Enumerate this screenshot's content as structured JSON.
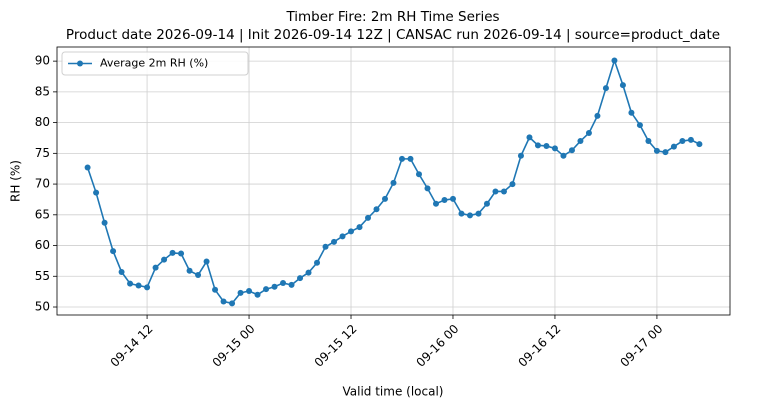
{
  "chart_data": {
    "type": "line",
    "title": "Timber Fire: 2m RH Time Series",
    "subtitle": "Product date 2026-09-14 | Init 2026-09-14 12Z | CANSAC run 2026-09-14 | source=product_date",
    "x_label": "Valid time (local)",
    "y_label": "RH (%)",
    "x": [
      "09-14 05",
      "09-14 06",
      "09-14 07",
      "09-14 08",
      "09-14 09",
      "09-14 10",
      "09-14 11",
      "09-14 12",
      "09-14 13",
      "09-14 14",
      "09-14 15",
      "09-14 16",
      "09-14 17",
      "09-14 18",
      "09-14 19",
      "09-14 20",
      "09-14 21",
      "09-14 22",
      "09-14 23",
      "09-15 00",
      "09-15 01",
      "09-15 02",
      "09-15 03",
      "09-15 04",
      "09-15 05",
      "09-15 06",
      "09-15 07",
      "09-15 08",
      "09-15 09",
      "09-15 10",
      "09-15 11",
      "09-15 12",
      "09-15 13",
      "09-15 14",
      "09-15 15",
      "09-15 16",
      "09-15 17",
      "09-15 18",
      "09-15 19",
      "09-15 20",
      "09-15 21",
      "09-15 22",
      "09-15 23",
      "09-16 00",
      "09-16 01",
      "09-16 02",
      "09-16 03",
      "09-16 04",
      "09-16 05",
      "09-16 06",
      "09-16 07",
      "09-16 08",
      "09-16 09",
      "09-16 10",
      "09-16 11",
      "09-16 12",
      "09-16 13",
      "09-16 14",
      "09-16 15",
      "09-16 16",
      "09-16 17",
      "09-16 18",
      "09-16 19",
      "09-16 20",
      "09-16 21",
      "09-16 22",
      "09-16 23",
      "09-17 00",
      "09-17 01",
      "09-17 02",
      "09-17 03",
      "09-17 04",
      "09-17 05"
    ],
    "series": [
      {
        "name": "Average 2m RH (%)",
        "color": "#1f77b4",
        "values": [
          72.7,
          68.6,
          63.7,
          59.1,
          55.7,
          53.8,
          53.5,
          53.2,
          56.4,
          57.7,
          58.8,
          58.7,
          55.9,
          55.2,
          57.4,
          52.8,
          50.9,
          50.6,
          52.3,
          52.6,
          52.0,
          52.9,
          53.3,
          53.9,
          53.6,
          54.7,
          55.6,
          57.2,
          59.8,
          60.6,
          61.5,
          62.3,
          63.0,
          64.5,
          65.9,
          67.6,
          70.2,
          74.1,
          74.1,
          71.6,
          69.3,
          66.8,
          67.4,
          67.6,
          65.2,
          64.9,
          65.2,
          66.8,
          68.8,
          68.8,
          70.0,
          74.6,
          77.6,
          76.3,
          76.2,
          75.8,
          74.6,
          75.5,
          77.0,
          78.3,
          81.1,
          85.6,
          90.1,
          86.1,
          81.6,
          79.6,
          77.0,
          75.4,
          75.2,
          76.1,
          77.0,
          77.2,
          76.5
        ]
      }
    ],
    "xlim": [
      "09-14 01:24",
      "09-17 08:36"
    ],
    "xticks": [
      "09-14 12",
      "09-15 00",
      "09-15 12",
      "09-16 00",
      "09-16 12",
      "09-17 00"
    ],
    "ylim": [
      48.7,
      92.3
    ],
    "yticks": [
      50,
      55,
      60,
      65,
      70,
      75,
      80,
      85,
      90
    ],
    "grid": true,
    "legend": "upper-left"
  }
}
